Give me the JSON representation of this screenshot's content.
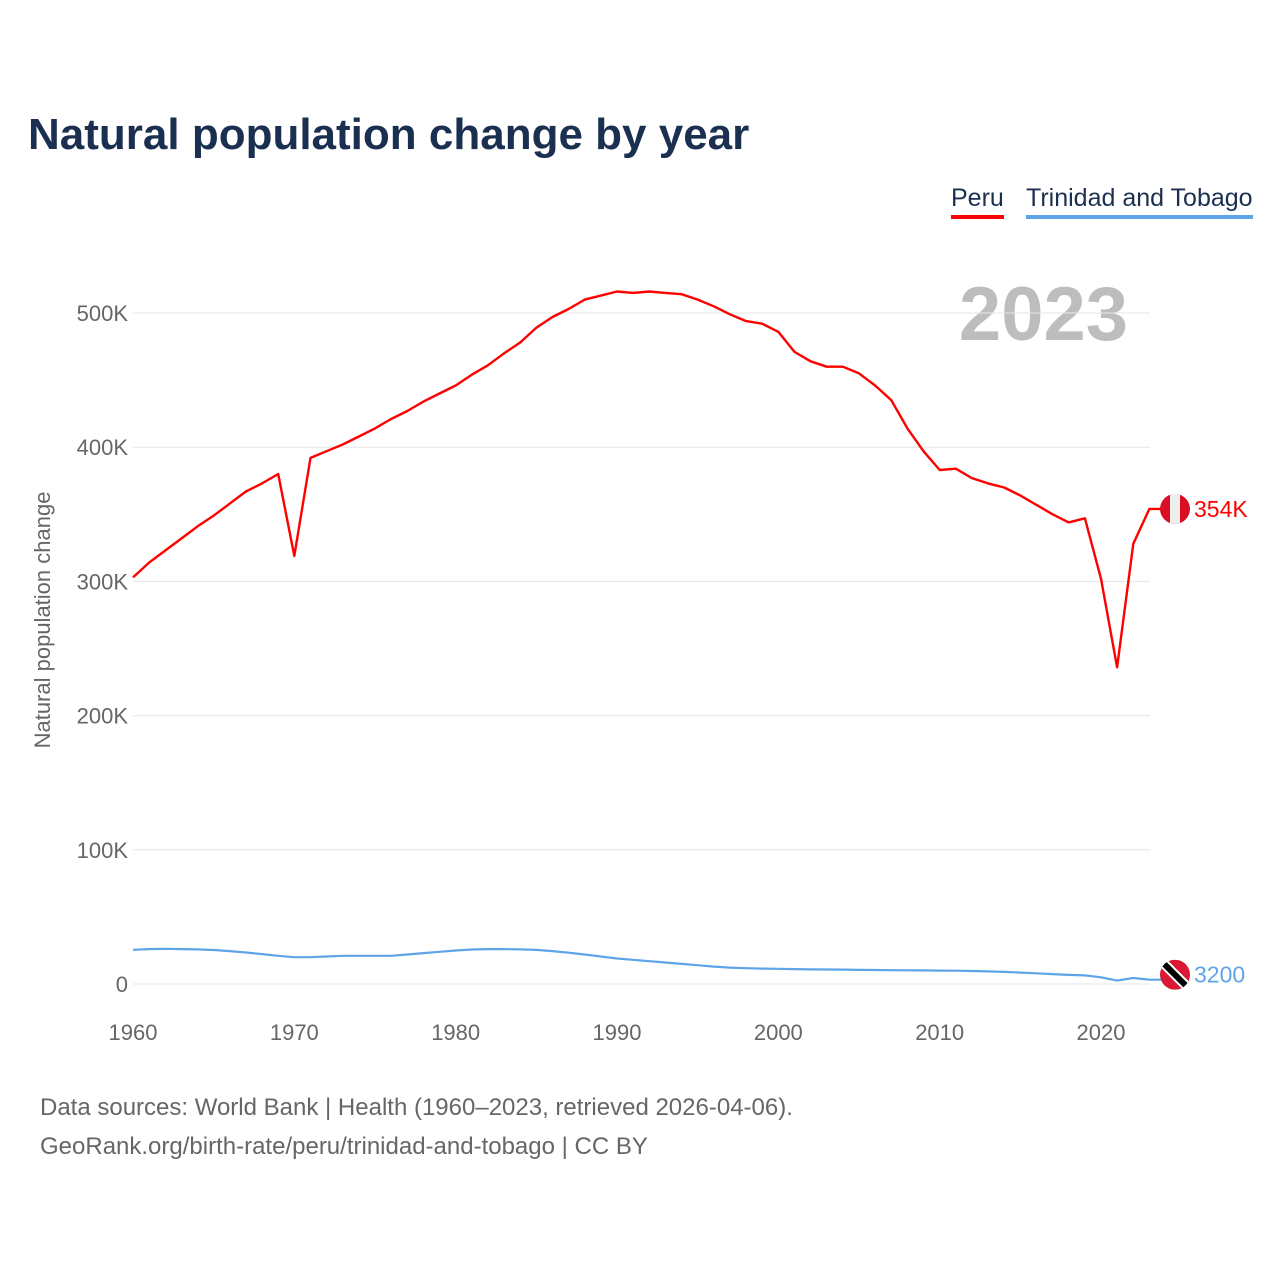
{
  "title": "Natural population change by year",
  "footer": {
    "line1": "Data sources: World Bank | Health (1960–2023, retrieved 2026-04-06).",
    "line2": "GeoRank.org/birth-rate/peru/trinidad-and-tobago | CC BY"
  },
  "chart_data": {
    "type": "line",
    "title": "Natural population change by year",
    "ylabel": "Natural population change",
    "xlabel": "",
    "year_label": "2023",
    "xlim": [
      1960,
      2023
    ],
    "ylim": [
      0,
      540000
    ],
    "x_ticks": [
      1960,
      1970,
      1980,
      1990,
      2000,
      2010,
      2020
    ],
    "y_ticks": [
      {
        "v": 0,
        "label": "0"
      },
      {
        "v": 100000,
        "label": "100K"
      },
      {
        "v": 200000,
        "label": "200K"
      },
      {
        "v": 300000,
        "label": "300K"
      },
      {
        "v": 400000,
        "label": "400K"
      },
      {
        "v": 500000,
        "label": "500K"
      }
    ],
    "grid": true,
    "legend_position": "top-right",
    "x": [
      1960,
      1961,
      1962,
      1963,
      1964,
      1965,
      1966,
      1967,
      1968,
      1969,
      1970,
      1971,
      1972,
      1973,
      1974,
      1975,
      1976,
      1977,
      1978,
      1979,
      1980,
      1981,
      1982,
      1983,
      1984,
      1985,
      1986,
      1987,
      1988,
      1989,
      1990,
      1991,
      1992,
      1993,
      1994,
      1995,
      1996,
      1997,
      1998,
      1999,
      2000,
      2001,
      2002,
      2003,
      2004,
      2005,
      2006,
      2007,
      2008,
      2009,
      2010,
      2011,
      2012,
      2013,
      2014,
      2015,
      2016,
      2017,
      2018,
      2019,
      2020,
      2021,
      2022,
      2023
    ],
    "series": [
      {
        "name": "Peru",
        "color": "#ff0000",
        "end_label": "354K",
        "values": [
          303000,
          314000,
          323000,
          332000,
          341000,
          349000,
          358000,
          367000,
          373000,
          380000,
          319000,
          392000,
          397000,
          402000,
          408000,
          414000,
          421000,
          427000,
          434000,
          440000,
          446000,
          454000,
          461000,
          470000,
          478000,
          489000,
          497000,
          503000,
          510000,
          513000,
          516000,
          515000,
          516000,
          515000,
          514000,
          510000,
          505000,
          499000,
          494000,
          492000,
          486000,
          471000,
          464000,
          460000,
          460000,
          455000,
          446000,
          435000,
          414000,
          397000,
          383000,
          384000,
          377000,
          373000,
          370000,
          364000,
          357000,
          350000,
          344000,
          347000,
          302000,
          236000,
          328000,
          354000
        ]
      },
      {
        "name": "Trinidad and Tobago",
        "color": "#5fa4e8",
        "end_label": "3200",
        "values": [
          25500,
          26000,
          26200,
          26000,
          25800,
          25300,
          24500,
          23500,
          22300,
          21000,
          20000,
          20000,
          20500,
          21000,
          21000,
          21000,
          21000,
          22000,
          23000,
          24000,
          25000,
          25700,
          26000,
          26000,
          25800,
          25400,
          24500,
          23300,
          22000,
          20500,
          19000,
          18000,
          17000,
          16000,
          15000,
          14000,
          13000,
          12200,
          11800,
          11500,
          11300,
          11100,
          10900,
          10800,
          10700,
          10500,
          10400,
          10300,
          10200,
          10100,
          10000,
          9900,
          9700,
          9400,
          9000,
          8500,
          8000,
          7400,
          6800,
          6400,
          5000,
          2500,
          4500,
          3200
        ]
      }
    ]
  }
}
